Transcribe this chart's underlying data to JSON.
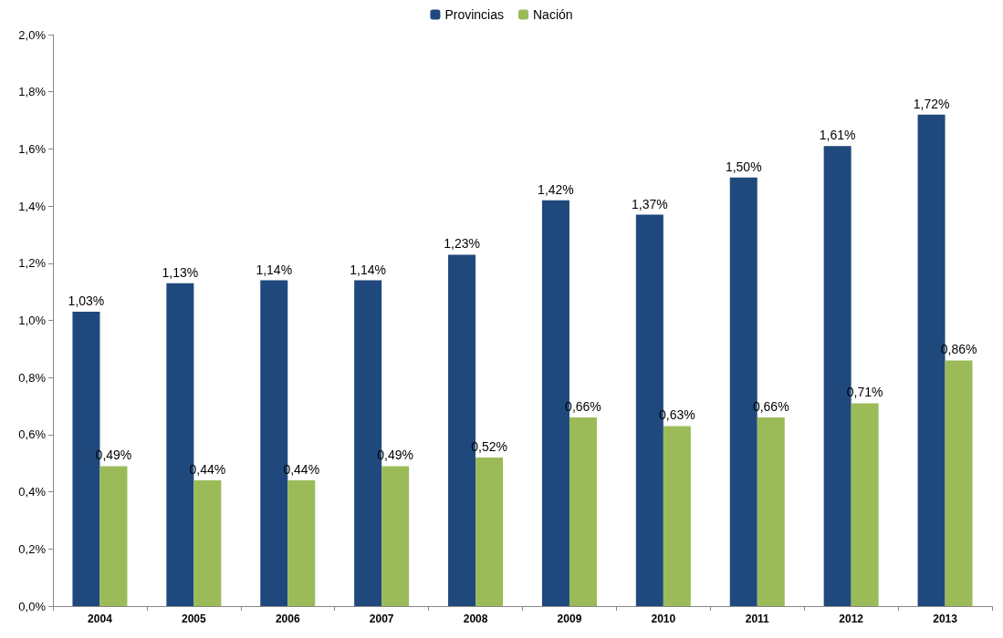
{
  "chart_data": {
    "type": "bar",
    "categories": [
      "2004",
      "2005",
      "2006",
      "2007",
      "2008",
      "2009",
      "2010",
      "2011",
      "2012",
      "2013"
    ],
    "series": [
      {
        "name": "Provincias",
        "color": "#1f497d",
        "values": [
          1.03,
          1.13,
          1.14,
          1.14,
          1.23,
          1.42,
          1.37,
          1.5,
          1.61,
          1.72
        ],
        "value_labels": [
          "1,03%",
          "1,13%",
          "1,14%",
          "1,14%",
          "1,23%",
          "1,42%",
          "1,37%",
          "1,50%",
          "1,61%",
          "1,72%"
        ]
      },
      {
        "name": "Nación",
        "color": "#9bbb59",
        "values": [
          0.49,
          0.44,
          0.44,
          0.49,
          0.52,
          0.66,
          0.63,
          0.66,
          0.71,
          0.86
        ],
        "value_labels": [
          "0,49%",
          "0,44%",
          "0,44%",
          "0,49%",
          "0,52%",
          "0,66%",
          "0,63%",
          "0,66%",
          "0,71%",
          "0,86%"
        ]
      }
    ],
    "ylim": [
      0,
      2
    ],
    "yticks": [
      {
        "value": 0,
        "label": "0,0%"
      },
      {
        "value": 0.2,
        "label": "0,2%"
      },
      {
        "value": 0.4,
        "label": "0,4%"
      },
      {
        "value": 0.6,
        "label": "0,6%"
      },
      {
        "value": 0.8,
        "label": "0,8%"
      },
      {
        "value": 1,
        "label": "1,0%"
      },
      {
        "value": 1.2,
        "label": "1,2%"
      },
      {
        "value": 1.4,
        "label": "1,4%"
      },
      {
        "value": 1.6,
        "label": "1,6%"
      },
      {
        "value": 1.8,
        "label": "1,8%"
      },
      {
        "value": 2,
        "label": "2,0%"
      }
    ],
    "grid": false,
    "legend": "top"
  }
}
